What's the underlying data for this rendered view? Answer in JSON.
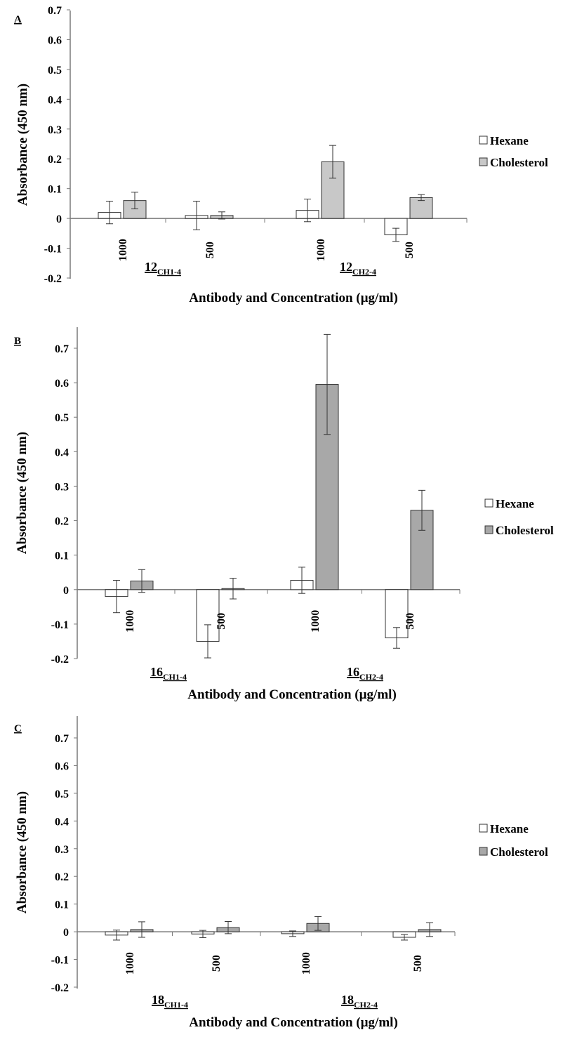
{
  "chart_data": [
    {
      "type": "bar",
      "panel": "A",
      "categories": [
        "1000",
        "500",
        "1000",
        "500"
      ],
      "groups": [
        {
          "main": "12",
          "sub": "CH1-4"
        },
        {
          "main": "12",
          "sub": "CH2-4"
        }
      ],
      "series": [
        {
          "name": "Hexane",
          "values": [
            0.02,
            0.01,
            0.027,
            -0.055
          ],
          "errors": [
            0.038,
            0.048,
            0.038,
            0.022
          ],
          "color": "#ffffff"
        },
        {
          "name": "Cholesterol",
          "values": [
            0.06,
            0.01,
            0.19,
            0.07
          ],
          "errors": [
            0.028,
            0.012,
            0.055,
            0.01
          ],
          "color": "#c8c8c8"
        }
      ],
      "xlabel": "Antibody and Concentration (µg/ml)",
      "ylabel": "Absorbance (450 nm)",
      "yticks": [
        "0.7",
        "0.6",
        "0.5",
        "0.4",
        "0.3",
        "0.2",
        "0.1",
        "0",
        "-0.1",
        "-0.2"
      ],
      "ylim": [
        -0.2,
        0.7
      ],
      "legend_position": "right"
    },
    {
      "type": "bar",
      "panel": "B",
      "categories": [
        "1000",
        "500",
        "1000",
        "500"
      ],
      "groups": [
        {
          "main": "16",
          "sub": "CH1-4"
        },
        {
          "main": "16",
          "sub": "CH2-4"
        }
      ],
      "series": [
        {
          "name": "Hexane",
          "values": [
            -0.02,
            -0.15,
            0.027,
            -0.14
          ],
          "errors": [
            0.047,
            0.048,
            0.038,
            0.03
          ],
          "color": "#ffffff"
        },
        {
          "name": "Cholesterol",
          "values": [
            0.025,
            0.003,
            0.595,
            0.23
          ],
          "errors": [
            0.033,
            0.03,
            0.145,
            0.058
          ],
          "color": "#a8a8a8"
        }
      ],
      "xlabel": "Antibody and Concentration (µg/ml)",
      "ylabel": "Absorbance (450 nm)",
      "yticks": [
        "0.7",
        "0.6",
        "0.5",
        "0.4",
        "0.3",
        "0.2",
        "0.1",
        "0",
        "-0.1",
        "-0.2"
      ],
      "ylim": [
        -0.2,
        0.75
      ],
      "legend_position": "right"
    },
    {
      "type": "bar",
      "panel": "C",
      "categories": [
        "1000",
        "500",
        "1000",
        "500"
      ],
      "groups": [
        {
          "main": "18",
          "sub": "CH1-4"
        },
        {
          "main": "18",
          "sub": "CH2-4"
        }
      ],
      "series": [
        {
          "name": "Hexane",
          "values": [
            -0.012,
            -0.008,
            -0.007,
            -0.02
          ],
          "errors": [
            0.018,
            0.013,
            0.01,
            0.01
          ],
          "color": "#ffffff"
        },
        {
          "name": "Cholesterol",
          "values": [
            0.008,
            0.015,
            0.03,
            0.008
          ],
          "errors": [
            0.028,
            0.022,
            0.025,
            0.025
          ],
          "color": "#a8a8a8"
        }
      ],
      "xlabel": "Antibody and Concentration (µg/ml)",
      "ylabel": "Absorbance (450 nm)",
      "yticks": [
        "0.7",
        "0.6",
        "0.5",
        "0.4",
        "0.3",
        "0.2",
        "0.1",
        "0",
        "-0.1",
        "-0.2"
      ],
      "ylim": [
        -0.2,
        0.7
      ],
      "legend_position": "right"
    }
  ]
}
